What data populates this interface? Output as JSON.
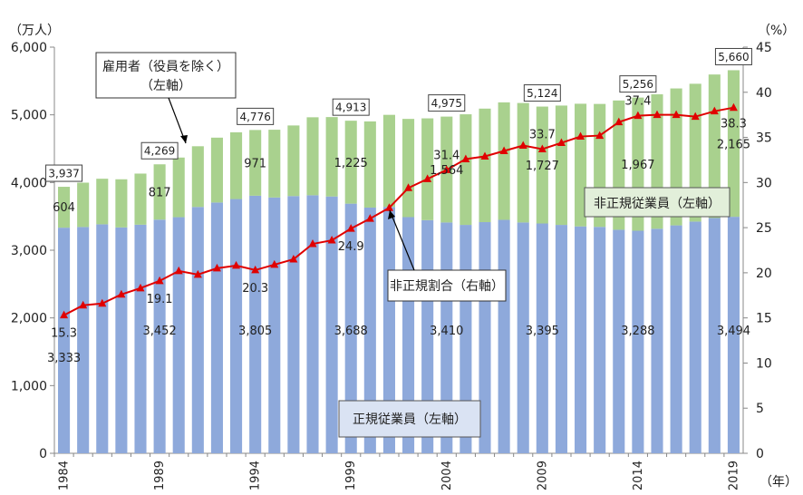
{
  "chart_data": {
    "type": "bar",
    "stacked": true,
    "left_unit": "（万人）",
    "right_unit": "（%）",
    "x_unit": "（年）",
    "y_left_lim": [
      0,
      6000
    ],
    "y_left_ticks": [
      "0",
      "1,000",
      "2,000",
      "3,000",
      "4,000",
      "5,000",
      "6,000"
    ],
    "y_right_lim": [
      0,
      45
    ],
    "y_right_ticks": [
      "0",
      "5",
      "10",
      "15",
      "20",
      "25",
      "30",
      "35",
      "40",
      "45"
    ],
    "x": [
      1984,
      1985,
      1986,
      1987,
      1988,
      1989,
      1990,
      1991,
      1992,
      1993,
      1994,
      1995,
      1996,
      1997,
      1998,
      1999,
      2000,
      2001,
      2002,
      2003,
      2004,
      2005,
      2006,
      2007,
      2008,
      2009,
      2010,
      2011,
      2012,
      2013,
      2014,
      2015,
      2016,
      2017,
      2018,
      2019
    ],
    "x_tick_labels": [
      "1984",
      "1989",
      "1994",
      "1999",
      "2004",
      "2009",
      "2014",
      "2019"
    ],
    "x_tick_years": [
      1984,
      1989,
      1994,
      1999,
      2004,
      2009,
      2014,
      2019
    ],
    "series": [
      {
        "key": "regular",
        "axis": "left",
        "color": "#8ea9db",
        "values": [
          3333,
          3343,
          3383,
          3337,
          3377,
          3452,
          3488,
          3639,
          3705,
          3756,
          3805,
          3779,
          3800,
          3812,
          3794,
          3688,
          3630,
          3640,
          3489,
          3444,
          3410,
          3374,
          3415,
          3449,
          3410,
          3395,
          3374,
          3352,
          3345,
          3302,
          3288,
          3317,
          3367,
          3423,
          3476,
          3494
        ]
      },
      {
        "key": "non_regular",
        "axis": "left",
        "color": "#a9d18e",
        "values": [
          604,
          655,
          673,
          711,
          755,
          817,
          881,
          897,
          958,
          986,
          971,
          1001,
          1043,
          1152,
          1173,
          1225,
          1273,
          1360,
          1451,
          1504,
          1564,
          1634,
          1677,
          1735,
          1765,
          1727,
          1763,
          1812,
          1816,
          1910,
          1967,
          1986,
          2023,
          2036,
          2120,
          2165
        ]
      },
      {
        "key": "ratio",
        "axis": "right",
        "type": "line",
        "color": "#e00000",
        "values": [
          15.3,
          16.4,
          16.6,
          17.6,
          18.3,
          19.1,
          20.2,
          19.8,
          20.5,
          20.8,
          20.3,
          20.9,
          21.5,
          23.2,
          23.6,
          24.9,
          26.0,
          27.2,
          29.4,
          30.4,
          31.4,
          32.6,
          32.9,
          33.5,
          34.1,
          33.7,
          34.4,
          35.1,
          35.2,
          36.7,
          37.4,
          37.5,
          37.5,
          37.3,
          37.9,
          38.3
        ]
      }
    ],
    "total_labels": [
      {
        "year": 1984,
        "text": "3,937"
      },
      {
        "year": 1989,
        "text": "4,269"
      },
      {
        "year": 1994,
        "text": "4,776"
      },
      {
        "year": 1999,
        "text": "4,913"
      },
      {
        "year": 2004,
        "text": "4,975"
      },
      {
        "year": 2009,
        "text": "5,124"
      },
      {
        "year": 2014,
        "text": "5,256"
      },
      {
        "year": 2019,
        "text": "5,660"
      }
    ],
    "regular_labels": [
      {
        "year": 1984,
        "text": "3,333"
      },
      {
        "year": 1989,
        "text": "3,452"
      },
      {
        "year": 1994,
        "text": "3,805"
      },
      {
        "year": 1999,
        "text": "3,688"
      },
      {
        "year": 2004,
        "text": "3,410"
      },
      {
        "year": 2009,
        "text": "3,395"
      },
      {
        "year": 2014,
        "text": "3,288"
      },
      {
        "year": 2019,
        "text": "3,494"
      }
    ],
    "non_regular_labels": [
      {
        "year": 1984,
        "text": "604"
      },
      {
        "year": 1989,
        "text": "817"
      },
      {
        "year": 1994,
        "text": "971"
      },
      {
        "year": 1999,
        "text": "1,225"
      },
      {
        "year": 2004,
        "text": "1,564"
      },
      {
        "year": 2009,
        "text": "1,727"
      },
      {
        "year": 2014,
        "text": "1,967"
      },
      {
        "year": 2019,
        "text": "2,165"
      }
    ],
    "ratio_labels": [
      {
        "year": 1984,
        "text": "15.3"
      },
      {
        "year": 1989,
        "text": "19.1"
      },
      {
        "year": 1994,
        "text": "20.3"
      },
      {
        "year": 1999,
        "text": "24.9"
      },
      {
        "year": 2004,
        "text": "31.4"
      },
      {
        "year": 2009,
        "text": "33.7"
      },
      {
        "year": 2014,
        "text": "37.4"
      },
      {
        "year": 2019,
        "text": "38.3"
      }
    ],
    "callouts": {
      "employed": [
        "雇用者（役員を除く）",
        "（左軸）"
      ],
      "non_regular_employees": "非正規従業員（左軸）",
      "non_regular_ratio": "非正規割合（右軸）",
      "regular_employees": "正規従業員（左軸）"
    }
  }
}
